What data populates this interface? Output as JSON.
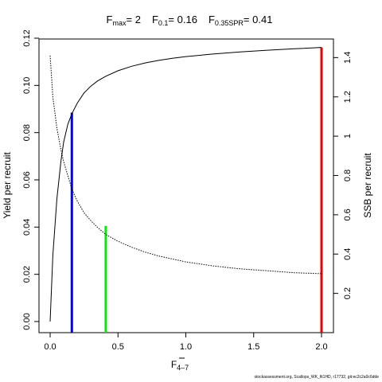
{
  "chart_data": {
    "type": "line",
    "title_parts": {
      "fmax_label": "F",
      "fmax_sub": "max",
      "fmax_eq": "= 2",
      "f01_label": "F",
      "f01_sub": "0.1",
      "f01_eq": "= 0.16",
      "f035_label": "F",
      "f035_sub": "0.35SPR",
      "f035_eq": "= 0.41"
    },
    "xlabel": "F",
    "xlabel_sub": "4–7",
    "ylabel_left": "Yield per recruit",
    "ylabel_right": "SSB per recruit",
    "xlim": [
      0,
      2
    ],
    "ylim_left": [
      0,
      0.12
    ],
    "ylim_right": [
      0,
      1.45
    ],
    "x_ticks": [
      0,
      0.5,
      1,
      1.5,
      2
    ],
    "x_tick_labels": [
      "0.0",
      "0.5",
      "1.0",
      "1.5",
      "2.0"
    ],
    "y_left_ticks": [
      0,
      0.02,
      0.04,
      0.06,
      0.08,
      0.1,
      0.12
    ],
    "y_left_tick_labels": [
      "0.00",
      "0.02",
      "0.04",
      "0.06",
      "0.08",
      "0.10",
      "0.12"
    ],
    "y_right_ticks": [
      0.2,
      0.4,
      0.6,
      0.8,
      1,
      1.2,
      1.4
    ],
    "y_right_tick_labels": [
      "0.2",
      "0.4",
      "0.6",
      "0.8",
      "1",
      "1.2",
      "1.4"
    ],
    "series": [
      {
        "style": "solid",
        "axis": "left",
        "x": [
          0,
          0.02,
          0.05,
          0.08,
          0.1,
          0.13,
          0.16,
          0.2,
          0.25,
          0.3,
          0.35,
          0.41,
          0.5,
          0.6,
          0.7,
          0.8,
          0.9,
          1.0,
          1.2,
          1.4,
          1.6,
          1.8,
          2.0
        ],
        "values": [
          0,
          0.028,
          0.052,
          0.068,
          0.076,
          0.0835,
          0.088,
          0.0925,
          0.0968,
          0.0997,
          0.1019,
          0.1039,
          0.1062,
          0.1081,
          0.1095,
          0.1106,
          0.1115,
          0.1122,
          0.1133,
          0.1142,
          0.1149,
          0.1155,
          0.1161
        ]
      },
      {
        "style": "dotted",
        "axis": "right",
        "x": [
          0,
          0.02,
          0.05,
          0.08,
          0.1,
          0.13,
          0.16,
          0.2,
          0.25,
          0.3,
          0.35,
          0.41,
          0.5,
          0.6,
          0.7,
          0.8,
          0.9,
          1.0,
          1.2,
          1.4,
          1.6,
          1.8,
          2.0
        ],
        "values": [
          1.41,
          1.2,
          1.04,
          0.93,
          0.87,
          0.8,
          0.73,
          0.67,
          0.61,
          0.57,
          0.535,
          0.5,
          0.465,
          0.435,
          0.41,
          0.39,
          0.375,
          0.36,
          0.34,
          0.325,
          0.315,
          0.305,
          0.3
        ]
      }
    ],
    "reference_lines": [
      {
        "color": "#0000ff",
        "x": 0.16,
        "y": 0.0885
      },
      {
        "color": "#00ee00",
        "x": 0.41,
        "y": 0.0405
      },
      {
        "color": "#ee0000",
        "x": 2.0,
        "y": 0.1161
      }
    ],
    "footnote": "stockassessment.org, Scallops_WK_fit1HD, r17732, git:ec2c2a0c6dde"
  }
}
